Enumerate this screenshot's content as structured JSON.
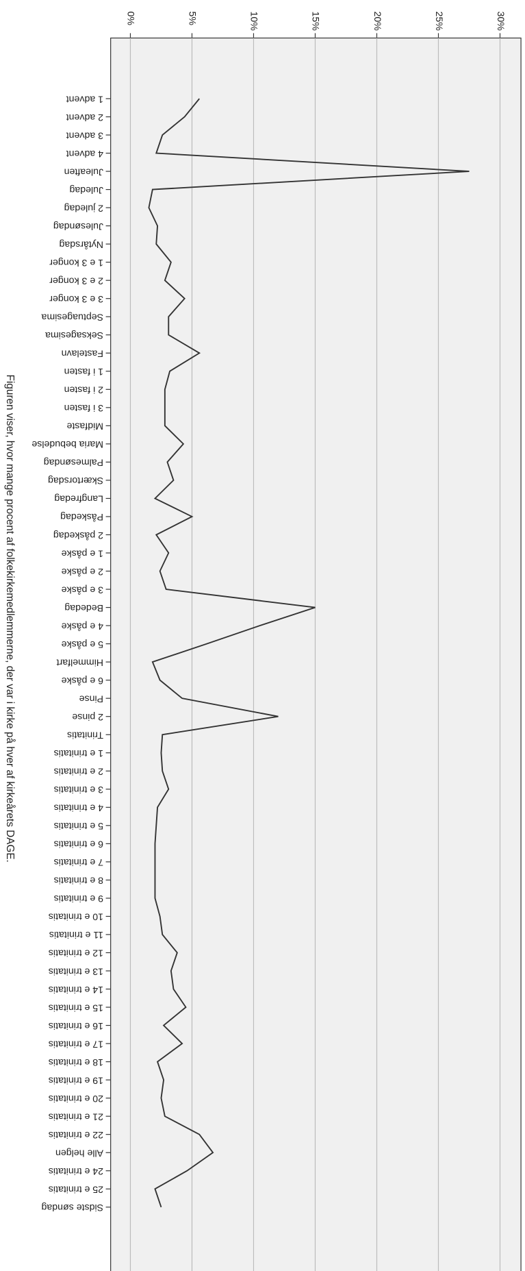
{
  "chart_data": {
    "type": "line",
    "title": "Figuren viser, hvor mange procent af folkekirkemedlemmerne, der var i kirke på hver af kirkeårets DAGE.",
    "categories": [
      "1 advent",
      "2 advent",
      "3 advent",
      "4 advent",
      "Juleaften",
      "Juledag",
      "2 juledag",
      "Julesøndag",
      "Nytårsdag",
      "1 e 3 konger",
      "2 e 3 konger",
      "3 e 3 konger",
      "Septuagesima",
      "Seksagesima",
      "Fastelavn",
      "1 i fasten",
      "2 i fasten",
      "3 i fasten",
      "Midfaste",
      "Maria bebudelse",
      "Palmesøndag",
      "Skærtorsdag",
      "Langfredag",
      "Påskedag",
      "2 påskedag",
      "1 e påske",
      "2 e påske",
      "3 e påske",
      "Bededag",
      "4 e påske",
      "5 e påske",
      "Himmelfart",
      "6 e påske",
      "Pinse",
      "2 pinse",
      "Trinitatis",
      "1 e trinitatis",
      "2 e trinitatis",
      "3 e trinitatis",
      "4 e trinitatis",
      "5 e trinitatis",
      "6 e trinitatis",
      "7 e trinitatis",
      "8 e trinitatis",
      "9 e trinitatis",
      "10 e trinitatis",
      "11 e trinitatis",
      "12 e trinitatis",
      "13 e trinitatis",
      "14 e trinitatis",
      "15 e trinitatis",
      "16 e trinitatis",
      "17 e trinitatis",
      "18 e trinitatis",
      "19 e trinitatis",
      "20 e trinitatis",
      "21 e trinitatis",
      "22 e trinitatis",
      "Alle helgen",
      "24 e trinitatis",
      "25 e trinitatis",
      "Sidste søndag"
    ],
    "values": [
      5.6,
      4.4,
      2.6,
      2.1,
      27.5,
      1.8,
      1.5,
      2.2,
      2.1,
      3.3,
      2.8,
      4.4,
      3.1,
      3.1,
      5.6,
      3.2,
      2.8,
      2.8,
      2.8,
      4.3,
      3.0,
      3.5,
      2.0,
      5.0,
      2.1,
      3.1,
      2.4,
      2.9,
      15.0,
      10.5,
      6.2,
      1.8,
      2.4,
      4.2,
      12.0,
      2.6,
      2.5,
      2.6,
      3.1,
      2.2,
      2.1,
      2.0,
      2.0,
      2.0,
      2.0,
      2.4,
      2.6,
      3.8,
      3.3,
      3.5,
      4.5,
      2.7,
      4.2,
      2.2,
      2.7,
      2.5,
      2.8,
      5.6,
      6.7,
      4.6,
      2.0,
      2.5
    ],
    "color": "#333333",
    "ylim": [
      -1.6,
      31.7
    ],
    "yticks": [
      {
        "value": 0,
        "label": "0%"
      },
      {
        "value": 5,
        "label": "5%"
      },
      {
        "value": 10,
        "label": "10%"
      },
      {
        "value": 15,
        "label": "15%"
      },
      {
        "value": 20,
        "label": "20%"
      },
      {
        "value": 25,
        "label": "25%"
      },
      {
        "value": 30,
        "label": "30%"
      }
    ],
    "grid": true
  }
}
